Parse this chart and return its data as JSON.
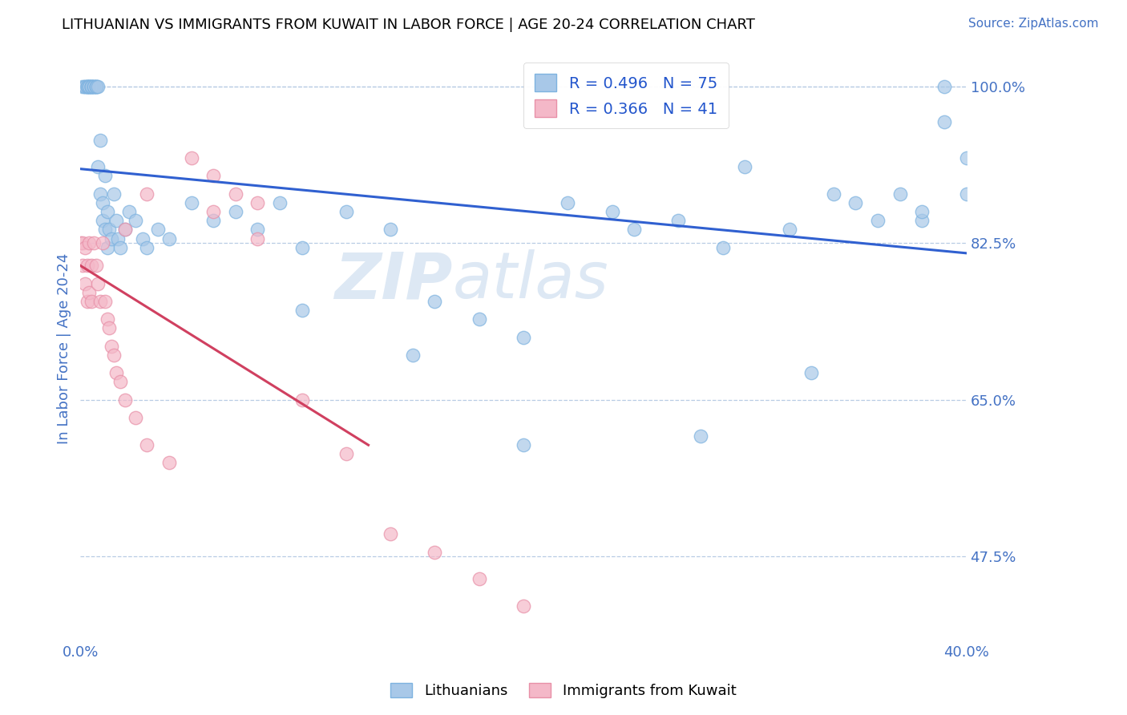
{
  "title": "LITHUANIAN VS IMMIGRANTS FROM KUWAIT IN LABOR FORCE | AGE 20-24 CORRELATION CHART",
  "source": "Source: ZipAtlas.com",
  "ylabel": "In Labor Force | Age 20-24",
  "xlim": [
    0.0,
    0.4
  ],
  "ylim": [
    0.38,
    1.035
  ],
  "yticks": [
    0.475,
    0.65,
    0.825,
    1.0
  ],
  "ytick_labels": [
    "47.5%",
    "65.0%",
    "82.5%",
    "100.0%"
  ],
  "blue_R": 0.496,
  "blue_N": 75,
  "pink_R": 0.366,
  "pink_N": 41,
  "blue_color": "#a8c8e8",
  "blue_edge": "#7eb3e0",
  "pink_color": "#f4b8c8",
  "pink_edge": "#e890a8",
  "trend_blue": "#3060d0",
  "trend_pink": "#d04060",
  "watermark_zip": "ZIP",
  "watermark_atlas": "atlas",
  "watermark_color": "#dde8f4",
  "legend_label_blue": "Lithuanians",
  "legend_label_pink": "Immigrants from Kuwait",
  "blue_x": [
    0.001,
    0.002,
    0.002,
    0.003,
    0.003,
    0.003,
    0.004,
    0.004,
    0.004,
    0.005,
    0.005,
    0.005,
    0.005,
    0.006,
    0.006,
    0.006,
    0.007,
    0.007,
    0.007,
    0.008,
    0.008,
    0.009,
    0.009,
    0.01,
    0.01,
    0.011,
    0.011,
    0.012,
    0.012,
    0.013,
    0.014,
    0.015,
    0.016,
    0.017,
    0.018,
    0.02,
    0.022,
    0.025,
    0.028,
    0.03,
    0.035,
    0.04,
    0.05,
    0.06,
    0.07,
    0.08,
    0.09,
    0.1,
    0.12,
    0.14,
    0.16,
    0.18,
    0.2,
    0.22,
    0.24,
    0.25,
    0.27,
    0.29,
    0.3,
    0.32,
    0.34,
    0.35,
    0.37,
    0.38,
    0.39,
    0.39,
    0.4,
    0.4,
    0.38,
    0.36,
    0.33,
    0.28,
    0.2,
    0.15,
    0.1
  ],
  "blue_y": [
    1.0,
    1.0,
    1.0,
    1.0,
    1.0,
    1.0,
    1.0,
    1.0,
    1.0,
    1.0,
    1.0,
    1.0,
    1.0,
    1.0,
    1.0,
    1.0,
    1.0,
    1.0,
    1.0,
    1.0,
    0.91,
    0.94,
    0.88,
    0.87,
    0.85,
    0.9,
    0.84,
    0.86,
    0.82,
    0.84,
    0.83,
    0.88,
    0.85,
    0.83,
    0.82,
    0.84,
    0.86,
    0.85,
    0.83,
    0.82,
    0.84,
    0.83,
    0.87,
    0.85,
    0.86,
    0.84,
    0.87,
    0.82,
    0.86,
    0.84,
    0.76,
    0.74,
    0.72,
    0.87,
    0.86,
    0.84,
    0.85,
    0.82,
    0.91,
    0.84,
    0.88,
    0.87,
    0.88,
    0.85,
    1.0,
    0.96,
    0.92,
    0.88,
    0.86,
    0.85,
    0.68,
    0.61,
    0.6,
    0.7,
    0.75
  ],
  "pink_x": [
    0.0,
    0.001,
    0.001,
    0.002,
    0.002,
    0.003,
    0.003,
    0.004,
    0.004,
    0.005,
    0.005,
    0.006,
    0.007,
    0.008,
    0.009,
    0.01,
    0.011,
    0.012,
    0.013,
    0.014,
    0.015,
    0.016,
    0.018,
    0.02,
    0.025,
    0.03,
    0.04,
    0.05,
    0.06,
    0.07,
    0.08,
    0.1,
    0.12,
    0.14,
    0.16,
    0.18,
    0.2,
    0.08,
    0.06,
    0.03,
    0.02
  ],
  "pink_y": [
    0.825,
    0.825,
    0.8,
    0.82,
    0.78,
    0.8,
    0.76,
    0.825,
    0.77,
    0.8,
    0.76,
    0.825,
    0.8,
    0.78,
    0.76,
    0.825,
    0.76,
    0.74,
    0.73,
    0.71,
    0.7,
    0.68,
    0.67,
    0.65,
    0.63,
    0.6,
    0.58,
    0.92,
    0.9,
    0.88,
    0.87,
    0.65,
    0.59,
    0.5,
    0.48,
    0.45,
    0.42,
    0.83,
    0.86,
    0.88,
    0.84
  ]
}
